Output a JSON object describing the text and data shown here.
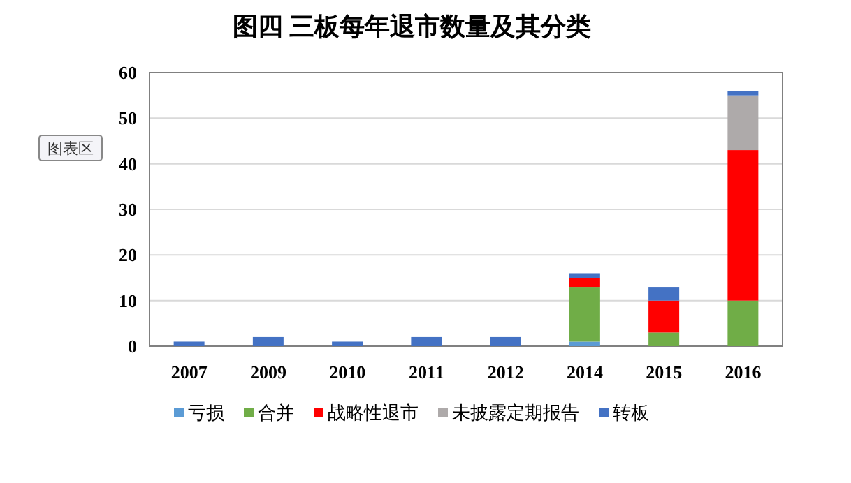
{
  "chart_data": {
    "type": "bar",
    "title": "图四  三板每年退市数量及其分类",
    "stacked": true,
    "categories": [
      "2007",
      "2009",
      "2010",
      "2011",
      "2012",
      "2014",
      "2015",
      "2016"
    ],
    "series": [
      {
        "name": "亏损",
        "color": "#5b9bd5",
        "values": [
          null,
          null,
          null,
          null,
          null,
          1,
          null,
          null
        ]
      },
      {
        "name": "合并",
        "color": "#70ad47",
        "values": [
          null,
          null,
          null,
          null,
          null,
          12,
          3,
          10
        ]
      },
      {
        "name": "战略性退市",
        "color": "#ff0000",
        "values": [
          null,
          null,
          null,
          null,
          null,
          2,
          7,
          33
        ]
      },
      {
        "name": "未披露定期报告",
        "color": "#aeaaaa",
        "values": [
          null,
          null,
          null,
          null,
          null,
          null,
          null,
          12
        ]
      },
      {
        "name": "转板",
        "color": "#4472c4",
        "values": [
          1,
          2,
          1,
          2,
          2,
          1,
          3,
          1
        ]
      }
    ],
    "ylim": [
      0,
      60
    ],
    "yticks": [
      0,
      10,
      20,
      30,
      40,
      50,
      60
    ],
    "grid": "y",
    "legend": "bottom",
    "annotations": [
      "图表区"
    ]
  }
}
